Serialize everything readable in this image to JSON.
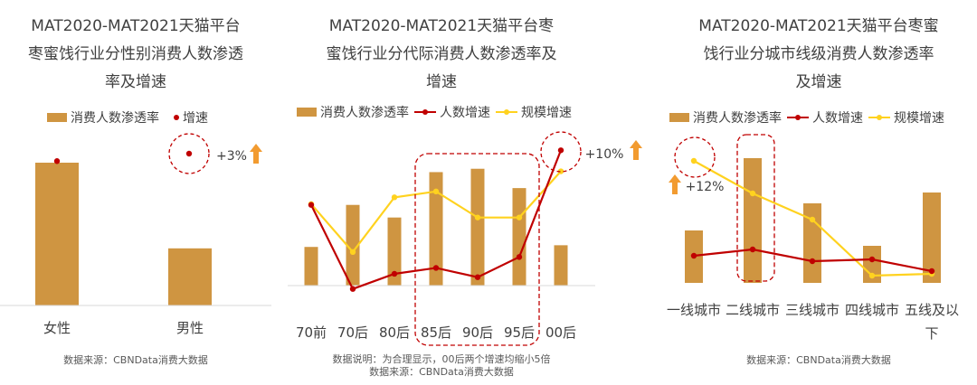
{
  "chart_data": [
    {
      "type": "bar",
      "title": "MAT2020-MAT2021天猫平台\n枣蜜饯行业分性别消费人数渗透\n率及增速",
      "legend": [
        "消费人数渗透率",
        "增速"
      ],
      "categories": [
        "女性",
        "男性"
      ],
      "series": [
        {
          "name": "消费人数渗透率",
          "values": [
            100,
            40
          ]
        },
        {
          "name": "增速",
          "values": [
            103,
            3
          ]
        }
      ],
      "annotation": "+3%",
      "source": "数据来源：CBNData消费大数据",
      "colors": {
        "bar": "#cf9541",
        "dot": "#c00000",
        "arrow": "#f29b30",
        "circle": "#c00000"
      }
    },
    {
      "type": "bar",
      "title": "MAT2020-MAT2021天猫平台枣\n蜜饯行业分代际消费人数渗透率及\n增速",
      "legend": [
        "消费人数渗透率",
        "人数增速",
        "规模增速"
      ],
      "categories": [
        "70前",
        "70后",
        "80后",
        "85后",
        "90后",
        "95后",
        "00后"
      ],
      "series": [
        {
          "name": "消费人数渗透率",
          "values": [
            46,
            96,
            81,
            135,
            139,
            116,
            48
          ]
        },
        {
          "name": "人数增速",
          "values": [
            96,
            -4,
            14,
            21,
            10,
            34,
            161
          ]
        },
        {
          "name": "规模增速",
          "values": [
            97,
            40,
            105,
            112,
            81,
            81,
            136
          ]
        }
      ],
      "annotation": "+10%",
      "note": "数据说明：为合理显示，00后两个增速均缩小5倍",
      "source": "数据来源：CBNData消费大数据",
      "colors": {
        "bar": "#cf9541",
        "line1": "#c00000",
        "line2": "#ffd21f",
        "arrow": "#f29b30"
      }
    },
    {
      "type": "bar",
      "title": "MAT2020-MAT2021天猫平台枣蜜\n饯行业分城市线级消费人数渗透率\n及增速",
      "legend": [
        "消费人数渗透率",
        "人数增速",
        "规模增速"
      ],
      "categories": [
        "一线城市",
        "二线城市",
        "三线城市",
        "四线城市",
        "五线及以下"
      ],
      "series": [
        {
          "name": "消费人数渗透率",
          "values": [
            58,
            138,
            88,
            41,
            100
          ]
        },
        {
          "name": "人数增速",
          "values": [
            30,
            37,
            24,
            26,
            13
          ]
        },
        {
          "name": "规模增速",
          "values": [
            135,
            99,
            70,
            8,
            10
          ]
        }
      ],
      "annotation": "+12%",
      "source": "数据来源：CBNData消费大数据",
      "colors": {
        "bar": "#cf9541",
        "line1": "#c00000",
        "line2": "#ffd21f",
        "arrow": "#f29b30"
      }
    }
  ]
}
